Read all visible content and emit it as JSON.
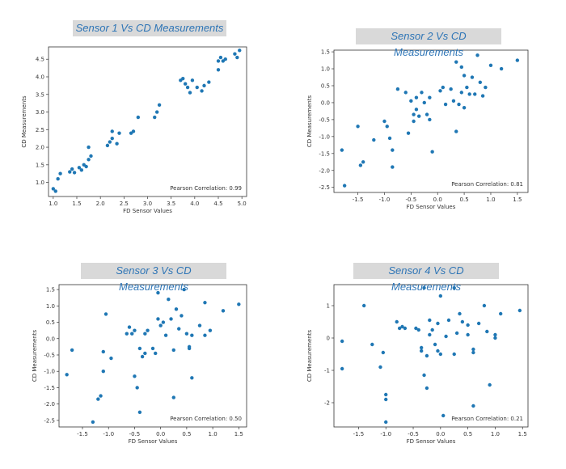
{
  "chart_data": [
    {
      "type": "scatter",
      "title": "Sensor 1 Vs CD Measurements",
      "xlabel": "FD Sensor Values",
      "ylabel": "CD Measurements",
      "annotation": "Pearson Correlation: 0.99",
      "xlim": [
        0.9,
        5.1
      ],
      "ylim": [
        0.6,
        4.85
      ],
      "xticks": [
        "1.0",
        "1.5",
        "2.0",
        "2.5",
        "3.0",
        "3.5",
        "4.0",
        "4.5",
        "5.0"
      ],
      "yticks": [
        "1.0",
        "1.5",
        "2.0",
        "2.5",
        "3.0",
        "3.5",
        "4.0",
        "4.5"
      ],
      "color": "#1f77b4",
      "points": [
        [
          1.0,
          0.82
        ],
        [
          1.05,
          0.75
        ],
        [
          1.1,
          1.1
        ],
        [
          1.15,
          1.25
        ],
        [
          1.35,
          1.3
        ],
        [
          1.4,
          1.38
        ],
        [
          1.45,
          1.28
        ],
        [
          1.55,
          1.42
        ],
        [
          1.6,
          1.35
        ],
        [
          1.65,
          1.5
        ],
        [
          1.7,
          1.45
        ],
        [
          1.75,
          1.65
        ],
        [
          1.8,
          1.75
        ],
        [
          1.75,
          2.0
        ],
        [
          2.15,
          2.05
        ],
        [
          2.2,
          2.15
        ],
        [
          2.25,
          2.25
        ],
        [
          2.25,
          2.45
        ],
        [
          2.35,
          2.1
        ],
        [
          2.4,
          2.4
        ],
        [
          2.65,
          2.4
        ],
        [
          2.7,
          2.45
        ],
        [
          2.8,
          2.85
        ],
        [
          3.15,
          2.85
        ],
        [
          3.2,
          3.0
        ],
        [
          3.25,
          3.2
        ],
        [
          3.7,
          3.9
        ],
        [
          3.75,
          3.95
        ],
        [
          3.8,
          3.8
        ],
        [
          3.85,
          3.7
        ],
        [
          3.9,
          3.55
        ],
        [
          3.95,
          3.9
        ],
        [
          4.05,
          3.7
        ],
        [
          4.15,
          3.6
        ],
        [
          4.2,
          3.75
        ],
        [
          4.3,
          3.85
        ],
        [
          4.5,
          4.2
        ],
        [
          4.5,
          4.45
        ],
        [
          4.55,
          4.55
        ],
        [
          4.6,
          4.45
        ],
        [
          4.65,
          4.5
        ],
        [
          4.85,
          4.65
        ],
        [
          4.9,
          4.55
        ],
        [
          4.95,
          4.75
        ]
      ]
    },
    {
      "type": "scatter",
      "title": "Sensor 2 Vs CD Measurements",
      "xlabel": "FD Sensor Values",
      "ylabel": "CD Measurements",
      "annotation": "Pearson Correlation: 0.81",
      "xlim": [
        -1.95,
        1.7
      ],
      "ylim": [
        -2.65,
        1.55
      ],
      "xticks": [
        "-1.5",
        "-1.0",
        "-0.5",
        "0.0",
        "0.5",
        "1.0",
        "1.5"
      ],
      "yticks": [
        "-2.5",
        "-2.0",
        "-1.5",
        "-1.0",
        "-0.5",
        "0.0",
        "0.5",
        "1.0",
        "1.5"
      ],
      "color": "#1f77b4",
      "points": [
        [
          -1.8,
          -1.4
        ],
        [
          -1.75,
          -2.45
        ],
        [
          -1.5,
          -0.7
        ],
        [
          -1.45,
          -1.85
        ],
        [
          -1.4,
          -1.75
        ],
        [
          -1.2,
          -1.1
        ],
        [
          -1.0,
          -0.55
        ],
        [
          -0.95,
          -0.7
        ],
        [
          -0.9,
          -1.05
        ],
        [
          -0.85,
          -1.9
        ],
        [
          -0.85,
          -1.4
        ],
        [
          -0.75,
          0.4
        ],
        [
          -0.6,
          0.3
        ],
        [
          -0.55,
          -0.9
        ],
        [
          -0.5,
          0.05
        ],
        [
          -0.45,
          -0.35
        ],
        [
          -0.45,
          -0.55
        ],
        [
          -0.4,
          0.15
        ],
        [
          -0.4,
          -0.2
        ],
        [
          -0.35,
          -0.4
        ],
        [
          -0.3,
          0.3
        ],
        [
          -0.25,
          0.0
        ],
        [
          -0.2,
          -0.35
        ],
        [
          -0.15,
          -0.5
        ],
        [
          -0.15,
          0.15
        ],
        [
          -0.1,
          -1.45
        ],
        [
          0.05,
          0.35
        ],
        [
          0.1,
          0.45
        ],
        [
          0.15,
          -0.05
        ],
        [
          0.25,
          0.4
        ],
        [
          0.3,
          0.05
        ],
        [
          0.35,
          1.2
        ],
        [
          0.35,
          -0.85
        ],
        [
          0.4,
          -0.05
        ],
        [
          0.45,
          0.3
        ],
        [
          0.45,
          1.05
        ],
        [
          0.5,
          0.8
        ],
        [
          0.5,
          -0.15
        ],
        [
          0.55,
          0.45
        ],
        [
          0.6,
          0.25
        ],
        [
          0.65,
          0.75
        ],
        [
          0.7,
          0.25
        ],
        [
          0.75,
          1.4
        ],
        [
          0.8,
          0.6
        ],
        [
          0.85,
          0.2
        ],
        [
          0.9,
          0.45
        ],
        [
          1.0,
          1.1
        ],
        [
          1.2,
          1.0
        ],
        [
          1.5,
          1.25
        ]
      ]
    },
    {
      "type": "scatter",
      "title": "Sensor 3 Vs CD Measurements",
      "xlabel": "FD Sensor Values",
      "ylabel": "CD Measurements",
      "annotation": "Pearson Correlation: 0.50",
      "xlim": [
        -1.95,
        1.65
      ],
      "ylim": [
        -2.7,
        1.65
      ],
      "xticks": [
        "-1.5",
        "-1.0",
        "-0.5",
        "0.0",
        "0.5",
        "1.0",
        "1.5"
      ],
      "yticks": [
        "-2.5",
        "-2.0",
        "-1.5",
        "-1.0",
        "-0.5",
        "0.0",
        "0.5",
        "1.0",
        "1.5"
      ],
      "color": "#1f77b4",
      "points": [
        [
          -1.8,
          -1.1
        ],
        [
          -1.7,
          -0.35
        ],
        [
          -1.3,
          -2.55
        ],
        [
          -1.2,
          -1.85
        ],
        [
          -1.15,
          -1.75
        ],
        [
          -1.1,
          -1.0
        ],
        [
          -1.1,
          -0.4
        ],
        [
          -1.05,
          0.75
        ],
        [
          -0.95,
          -0.6
        ],
        [
          -0.65,
          0.15
        ],
        [
          -0.6,
          0.35
        ],
        [
          -0.55,
          0.15
        ],
        [
          -0.5,
          0.25
        ],
        [
          -0.5,
          -1.15
        ],
        [
          -0.45,
          -1.5
        ],
        [
          -0.4,
          -0.3
        ],
        [
          -0.4,
          -2.25
        ],
        [
          -0.35,
          -0.55
        ],
        [
          -0.3,
          0.15
        ],
        [
          -0.3,
          -0.45
        ],
        [
          -0.25,
          0.25
        ],
        [
          -0.15,
          -0.3
        ],
        [
          -0.1,
          -0.45
        ],
        [
          -0.05,
          1.4
        ],
        [
          -0.05,
          0.6
        ],
        [
          0.0,
          0.4
        ],
        [
          0.05,
          0.5
        ],
        [
          0.1,
          0.1
        ],
        [
          0.15,
          1.2
        ],
        [
          0.2,
          0.6
        ],
        [
          0.25,
          -0.35
        ],
        [
          0.25,
          -1.8
        ],
        [
          0.3,
          0.9
        ],
        [
          0.35,
          0.3
        ],
        [
          0.4,
          0.7
        ],
        [
          0.45,
          1.5
        ],
        [
          0.5,
          0.15
        ],
        [
          0.55,
          -0.3
        ],
        [
          0.55,
          -0.25
        ],
        [
          0.6,
          -1.2
        ],
        [
          0.6,
          0.1
        ],
        [
          0.75,
          0.4
        ],
        [
          0.85,
          1.1
        ],
        [
          0.85,
          0.1
        ],
        [
          0.95,
          0.25
        ],
        [
          1.2,
          0.85
        ],
        [
          1.5,
          1.05
        ]
      ]
    },
    {
      "type": "scatter",
      "title": "Sensor 4 Vs CD Measurements",
      "xlabel": "FD Sensor Values",
      "ylabel": "CD Measurements",
      "annotation": "Pearson Correlation: 0.21",
      "xlim": [
        -1.95,
        1.6
      ],
      "ylim": [
        -2.75,
        1.65
      ],
      "xticks": [
        "-1.5",
        "-1.0",
        "-0.5",
        "0.0",
        "0.5",
        "1.0",
        "1.5"
      ],
      "yticks": [
        "-2",
        "-1",
        "0",
        "1"
      ],
      "color": "#1f77b4",
      "points": [
        [
          -1.8,
          -0.1
        ],
        [
          -1.8,
          -0.95
        ],
        [
          -1.4,
          1.0
        ],
        [
          -1.25,
          -0.2
        ],
        [
          -1.1,
          -0.9
        ],
        [
          -1.05,
          -0.45
        ],
        [
          -1.0,
          -1.75
        ],
        [
          -1.0,
          -1.9
        ],
        [
          -1.0,
          -2.6
        ],
        [
          -0.8,
          0.5
        ],
        [
          -0.75,
          0.3
        ],
        [
          -0.7,
          0.35
        ],
        [
          -0.65,
          0.3
        ],
        [
          -0.45,
          0.3
        ],
        [
          -0.4,
          0.25
        ],
        [
          -0.35,
          -0.3
        ],
        [
          -0.35,
          -0.4
        ],
        [
          -0.3,
          -1.15
        ],
        [
          -0.3,
          1.55
        ],
        [
          -0.25,
          -0.55
        ],
        [
          -0.25,
          -1.55
        ],
        [
          -0.2,
          0.55
        ],
        [
          -0.2,
          0.1
        ],
        [
          -0.15,
          0.25
        ],
        [
          -0.1,
          -0.2
        ],
        [
          -0.05,
          0.45
        ],
        [
          -0.05,
          -0.4
        ],
        [
          0.0,
          -0.5
        ],
        [
          0.0,
          1.3
        ],
        [
          0.05,
          -2.4
        ],
        [
          0.1,
          0.05
        ],
        [
          0.15,
          0.55
        ],
        [
          0.25,
          -0.5
        ],
        [
          0.25,
          1.55
        ],
        [
          0.3,
          0.15
        ],
        [
          0.35,
          0.75
        ],
        [
          0.4,
          0.5
        ],
        [
          0.5,
          0.1
        ],
        [
          0.5,
          0.4
        ],
        [
          0.6,
          -0.35
        ],
        [
          0.6,
          -2.1
        ],
        [
          0.6,
          -0.45
        ],
        [
          0.7,
          0.45
        ],
        [
          0.8,
          1.0
        ],
        [
          0.85,
          0.2
        ],
        [
          0.9,
          -1.45
        ],
        [
          1.0,
          0.1
        ],
        [
          1.0,
          0.0
        ],
        [
          1.1,
          0.75
        ],
        [
          1.45,
          0.85
        ]
      ]
    }
  ]
}
